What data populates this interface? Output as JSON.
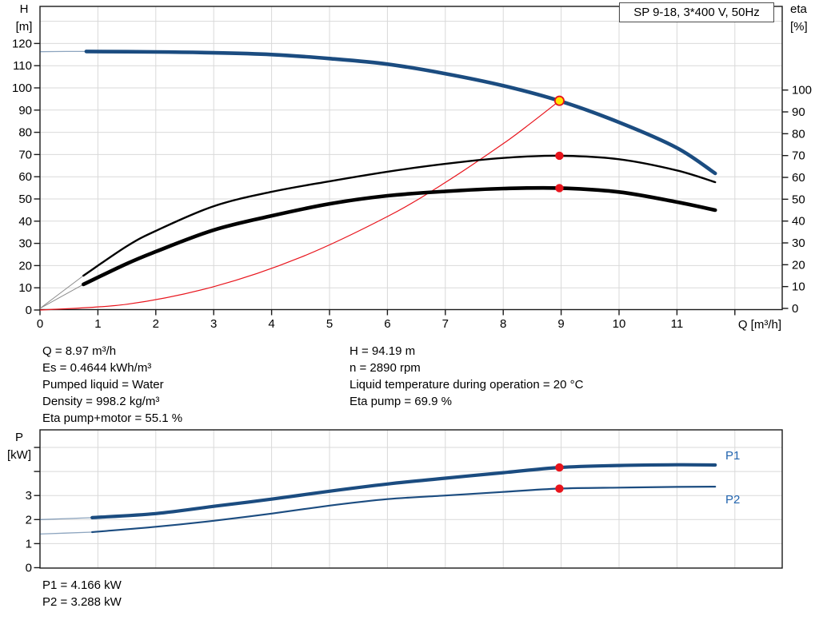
{
  "title_box": "SP 9-18, 3*400 V, 50Hz",
  "colors": {
    "curve_blue": "#1b4c80",
    "series_label_blue": "#2264ae",
    "curve_black": "#000000",
    "lead_gray": "#8c8c8c",
    "red": "#e8141c",
    "marker_yellow": "#ffe400",
    "grid": "#d9d9d9",
    "axis": "#1a1a1a",
    "text": "#000000"
  },
  "annotations": {
    "left": [
      "Q = 8.97 m³/h",
      "Es = 0.4644 kWh/m³",
      "Pumped liquid = Water",
      "Density = 998.2 kg/m³",
      "Eta pump+motor = 55.1 %"
    ],
    "right": [
      "H = 94.19 m",
      "n = 2890 rpm",
      "Liquid temperature during operation = 20 °C",
      "Eta pump = 69.9 %"
    ],
    "bottom": [
      "P1 = 4.166 kW",
      "P2 = 3.288 kW"
    ]
  },
  "chart_data": [
    {
      "type": "line",
      "title": "SP 9-18, 3*400 V, 50Hz",
      "x_axis": {
        "label": "Q [m³/h]",
        "min": 0,
        "max": 12.8,
        "tick_values": [
          0,
          1,
          2,
          3,
          4,
          5,
          6,
          7,
          8,
          9,
          10,
          11,
          12
        ],
        "tick_labels": [
          "0",
          "1",
          "2",
          "3",
          "4",
          "5",
          "6",
          "7",
          "8",
          "9",
          "10",
          "11",
          ""
        ],
        "grid_values": [
          1,
          2,
          3,
          4,
          5,
          6,
          7,
          8,
          9,
          10,
          11,
          12
        ]
      },
      "y_left": {
        "title_lines": [
          "H",
          "[m]"
        ],
        "min": 0,
        "max": 130,
        "tick_values": [
          0,
          10,
          20,
          30,
          40,
          50,
          60,
          70,
          80,
          90,
          100,
          110,
          120
        ],
        "grid_values": [
          10,
          20,
          30,
          40,
          50,
          60,
          70,
          80,
          90,
          100,
          110,
          120,
          130
        ]
      },
      "y_right": {
        "title_lines": [
          "eta",
          "[%]"
        ],
        "min": 0,
        "max": 100,
        "tick_values": [
          0,
          10,
          20,
          30,
          40,
          50,
          60,
          70,
          80,
          90,
          100
        ]
      },
      "series": [
        {
          "name": "head-curve",
          "axis": "H",
          "color": "#1b4c80",
          "width": 4.6,
          "thin_until": 0.8,
          "points": [
            [
              0,
              116.3
            ],
            [
              0.45,
              116.4
            ],
            [
              0.8,
              116.4
            ],
            [
              2,
              116.2
            ],
            [
              3,
              115.8
            ],
            [
              4,
              115.0
            ],
            [
              5,
              113.2
            ],
            [
              6,
              110.7
            ],
            [
              7,
              106.4
            ],
            [
              8,
              101.0
            ],
            [
              8.97,
              94.19
            ],
            [
              10,
              84.5
            ],
            [
              11,
              73.0
            ],
            [
              11.66,
              61.5
            ]
          ]
        },
        {
          "name": "system-curve",
          "axis": "H",
          "color": "#e8141c",
          "width": 1.2,
          "points": [
            [
              0,
              0
            ],
            [
              1.5,
              2.6
            ],
            [
              3,
              10.5
            ],
            [
              4.5,
              23.7
            ],
            [
              6,
              42.1
            ],
            [
              7,
              57.4
            ],
            [
              8,
              74.9
            ],
            [
              8.5,
              84.6
            ],
            [
              8.97,
              94.19
            ]
          ]
        },
        {
          "name": "eta-pump",
          "axis": "eta",
          "color": "#000000",
          "width": 2.4,
          "thin_until": 0.75,
          "lead_color": "#8c8c8c",
          "lead_width": 1,
          "points": [
            [
              0,
              0
            ],
            [
              0.75,
              15.0
            ],
            [
              1.5,
              28.5
            ],
            [
              2,
              35.5
            ],
            [
              3,
              46.8
            ],
            [
              4,
              53.4
            ],
            [
              5,
              58.2
            ],
            [
              6,
              62.6
            ],
            [
              7,
              66.2
            ],
            [
              8,
              68.9
            ],
            [
              8.97,
              69.9
            ],
            [
              10,
              68.3
            ],
            [
              11,
              63.2
            ],
            [
              11.66,
              57.8
            ]
          ]
        },
        {
          "name": "eta-pump-motor",
          "axis": "eta",
          "color": "#000000",
          "width": 4.6,
          "thin_until": 0.75,
          "lead_color": "#8c8c8c",
          "lead_width": 1,
          "points": [
            [
              0,
              0
            ],
            [
              0.75,
              11.0
            ],
            [
              1.5,
              20.5
            ],
            [
              2,
              26.0
            ],
            [
              3,
              35.9
            ],
            [
              4,
              42.4
            ],
            [
              5,
              47.9
            ],
            [
              6,
              51.6
            ],
            [
              7,
              53.6
            ],
            [
              8,
              54.9
            ],
            [
              8.97,
              55.1
            ],
            [
              10,
              53.3
            ],
            [
              11,
              48.7
            ],
            [
              11.66,
              45.0
            ]
          ]
        }
      ],
      "markers": [
        {
          "name": "operating-point",
          "axis": "H",
          "q": 8.97,
          "value": 94.19,
          "style": "yellow"
        },
        {
          "name": "eta-pump-point",
          "axis": "eta",
          "q": 8.97,
          "value": 69.9,
          "style": "red"
        },
        {
          "name": "eta-pump-motor-point",
          "axis": "eta",
          "q": 8.97,
          "value": 55.1,
          "style": "red"
        }
      ]
    },
    {
      "type": "line",
      "x_axis": {
        "min": 0,
        "max": 12.8,
        "grid_values": [
          1,
          2,
          3,
          4,
          5,
          6,
          7,
          8,
          9,
          10,
          11,
          12
        ]
      },
      "y_left": {
        "title_lines": [
          "P",
          "[kW]"
        ],
        "min": 0,
        "max": 5.7,
        "tick_values": [
          0,
          1,
          2,
          3,
          4,
          5
        ],
        "tick_labels": [
          "0",
          "1",
          "2",
          "3",
          "",
          ""
        ],
        "grid_values": [
          1,
          2,
          3,
          4,
          5
        ]
      },
      "series": [
        {
          "name": "P1",
          "label": "P1",
          "label_side": "above",
          "axis": "P",
          "color": "#1b4c80",
          "width": 4.2,
          "thin_until": 0.9,
          "points": [
            [
              0,
              2.0
            ],
            [
              0.9,
              2.08
            ],
            [
              2,
              2.25
            ],
            [
              3,
              2.55
            ],
            [
              4,
              2.85
            ],
            [
              5,
              3.18
            ],
            [
              6,
              3.48
            ],
            [
              7,
              3.72
            ],
            [
              8,
              3.95
            ],
            [
              8.97,
              4.166
            ],
            [
              10,
              4.25
            ],
            [
              11,
              4.28
            ],
            [
              11.66,
              4.27
            ]
          ]
        },
        {
          "name": "P2",
          "label": "P2",
          "label_side": "below",
          "axis": "P",
          "color": "#1b4c80",
          "width": 2.2,
          "thin_until": 0.9,
          "points": [
            [
              0,
              1.4
            ],
            [
              0.9,
              1.48
            ],
            [
              2,
              1.7
            ],
            [
              3,
              1.95
            ],
            [
              4,
              2.25
            ],
            [
              5,
              2.58
            ],
            [
              6,
              2.85
            ],
            [
              7,
              3.0
            ],
            [
              8,
              3.15
            ],
            [
              8.97,
              3.288
            ],
            [
              10,
              3.33
            ],
            [
              11,
              3.36
            ],
            [
              11.66,
              3.37
            ]
          ]
        }
      ],
      "markers": [
        {
          "name": "p1-point",
          "axis": "P",
          "q": 8.97,
          "value": 4.166,
          "style": "red"
        },
        {
          "name": "p2-point",
          "axis": "P",
          "q": 8.97,
          "value": 3.288,
          "style": "red"
        }
      ]
    }
  ]
}
